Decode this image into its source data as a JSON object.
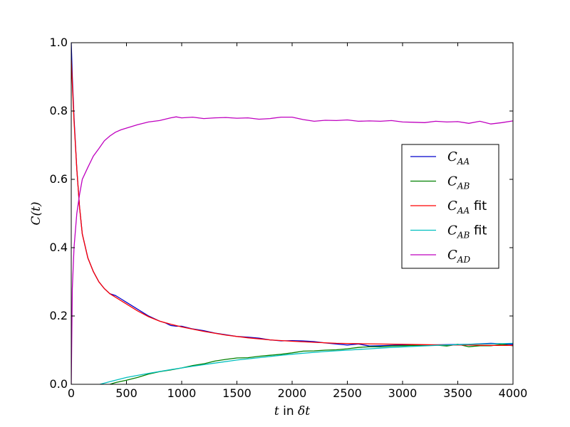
{
  "chart_data": {
    "type": "line",
    "title": "",
    "xlabel_var": "t",
    "xlabel_mid": " in ",
    "xlabel_unit": "δt",
    "ylabel": "C(t)",
    "xlim": [
      0,
      4000
    ],
    "ylim": [
      0.0,
      1.0
    ],
    "xticks": [
      0,
      500,
      1000,
      1500,
      2000,
      2500,
      3000,
      3500,
      4000
    ],
    "xtick_labels": [
      "0",
      "500",
      "1000",
      "1500",
      "2000",
      "2500",
      "3000",
      "3500",
      "4000"
    ],
    "yticks": [
      0.0,
      0.2,
      0.4,
      0.6,
      0.8,
      1.0
    ],
    "ytick_labels": [
      "0.0",
      "0.2",
      "0.4",
      "0.6",
      "0.8",
      "1.0"
    ],
    "grid": false,
    "legend_position": "center-right",
    "series": [
      {
        "name": "C_AA",
        "legend": {
          "base": "C",
          "sub": "AA",
          "suffix": ""
        },
        "color": "#0000cc",
        "x": [
          0,
          10,
          25,
          50,
          75,
          100,
          150,
          200,
          250,
          300,
          350,
          400,
          450,
          500,
          600,
          700,
          800,
          850,
          900,
          950,
          1000,
          1100,
          1200,
          1300,
          1400,
          1500,
          1600,
          1700,
          1800,
          1900,
          2000,
          2100,
          2200,
          2300,
          2400,
          2500,
          2600,
          2700,
          2800,
          2900,
          3000,
          3200,
          3400,
          3600,
          3800,
          4000
        ],
        "y": [
          1.0,
          0.9,
          0.78,
          0.63,
          0.52,
          0.44,
          0.37,
          0.33,
          0.3,
          0.28,
          0.265,
          0.26,
          0.25,
          0.24,
          0.22,
          0.2,
          0.185,
          0.18,
          0.172,
          0.17,
          0.17,
          0.162,
          0.157,
          0.15,
          0.145,
          0.14,
          0.138,
          0.135,
          0.13,
          0.127,
          0.128,
          0.127,
          0.125,
          0.121,
          0.118,
          0.115,
          0.118,
          0.112,
          0.113,
          0.114,
          0.115,
          0.115,
          0.116,
          0.117,
          0.12,
          0.117
        ]
      },
      {
        "name": "C_AB",
        "legend": {
          "base": "C",
          "sub": "AB",
          "suffix": ""
        },
        "color": "#008000",
        "x": [
          350,
          400,
          500,
          600,
          700,
          800,
          900,
          1000,
          1100,
          1200,
          1300,
          1400,
          1500,
          1600,
          1700,
          1800,
          1900,
          2000,
          2100,
          2200,
          2300,
          2400,
          2500,
          2600,
          2700,
          2800,
          2900,
          3000,
          3100,
          3200,
          3300,
          3400,
          3500,
          3600,
          3700,
          3800,
          3900,
          4000
        ],
        "y": [
          0.0,
          0.005,
          0.012,
          0.02,
          0.03,
          0.037,
          0.042,
          0.048,
          0.055,
          0.06,
          0.068,
          0.073,
          0.077,
          0.078,
          0.082,
          0.085,
          0.088,
          0.092,
          0.097,
          0.098,
          0.1,
          0.101,
          0.104,
          0.108,
          0.11,
          0.11,
          0.112,
          0.113,
          0.114,
          0.113,
          0.115,
          0.112,
          0.117,
          0.11,
          0.113,
          0.113,
          0.117,
          0.113
        ]
      },
      {
        "name": "C_AA fit",
        "legend": {
          "base": "C",
          "sub": "AA",
          "suffix": " fit"
        },
        "color": "#ff0000",
        "x": [
          0,
          10,
          25,
          50,
          75,
          100,
          150,
          200,
          250,
          300,
          350,
          400,
          450,
          500,
          600,
          700,
          800,
          900,
          1000,
          1200,
          1400,
          1600,
          1800,
          2000,
          2200,
          2400,
          2600,
          2800,
          3000,
          3200,
          3400,
          3600,
          3800,
          4000
        ],
        "y": [
          0.95,
          0.88,
          0.77,
          0.63,
          0.52,
          0.44,
          0.37,
          0.33,
          0.3,
          0.28,
          0.265,
          0.255,
          0.245,
          0.235,
          0.215,
          0.198,
          0.185,
          0.176,
          0.168,
          0.155,
          0.144,
          0.136,
          0.13,
          0.126,
          0.123,
          0.12,
          0.119,
          0.118,
          0.117,
          0.116,
          0.115,
          0.115,
          0.114,
          0.114
        ]
      },
      {
        "name": "C_AB fit",
        "legend": {
          "base": "C",
          "sub": "AB",
          "suffix": " fit"
        },
        "color": "#00bfbf",
        "x": [
          260,
          350,
          500,
          700,
          900,
          1100,
          1300,
          1500,
          1700,
          1900,
          2100,
          2300,
          2500,
          2700,
          2900,
          3100,
          3300,
          3500,
          3700,
          3900,
          4000
        ],
        "y": [
          0.0,
          0.008,
          0.02,
          0.032,
          0.043,
          0.053,
          0.062,
          0.071,
          0.078,
          0.085,
          0.091,
          0.096,
          0.1,
          0.104,
          0.108,
          0.111,
          0.114,
          0.116,
          0.118,
          0.119,
          0.12
        ]
      },
      {
        "name": "C_AD",
        "legend": {
          "base": "C",
          "sub": "AD",
          "suffix": ""
        },
        "color": "#bf00bf",
        "x": [
          0,
          10,
          25,
          50,
          75,
          100,
          150,
          200,
          250,
          300,
          350,
          400,
          450,
          500,
          600,
          700,
          800,
          900,
          950,
          1000,
          1100,
          1200,
          1300,
          1400,
          1500,
          1600,
          1700,
          1800,
          1900,
          2000,
          2100,
          2200,
          2300,
          2400,
          2500,
          2600,
          2700,
          2800,
          2900,
          3000,
          3100,
          3200,
          3300,
          3400,
          3500,
          3600,
          3700,
          3800,
          3900,
          4000
        ],
        "y": [
          0.0,
          0.28,
          0.4,
          0.5,
          0.555,
          0.6,
          0.635,
          0.668,
          0.69,
          0.713,
          0.727,
          0.738,
          0.745,
          0.75,
          0.76,
          0.768,
          0.772,
          0.78,
          0.783,
          0.78,
          0.782,
          0.778,
          0.78,
          0.781,
          0.779,
          0.78,
          0.776,
          0.778,
          0.782,
          0.782,
          0.775,
          0.77,
          0.773,
          0.772,
          0.774,
          0.77,
          0.771,
          0.77,
          0.772,
          0.768,
          0.767,
          0.766,
          0.77,
          0.768,
          0.769,
          0.764,
          0.77,
          0.762,
          0.766,
          0.771
        ]
      }
    ]
  }
}
